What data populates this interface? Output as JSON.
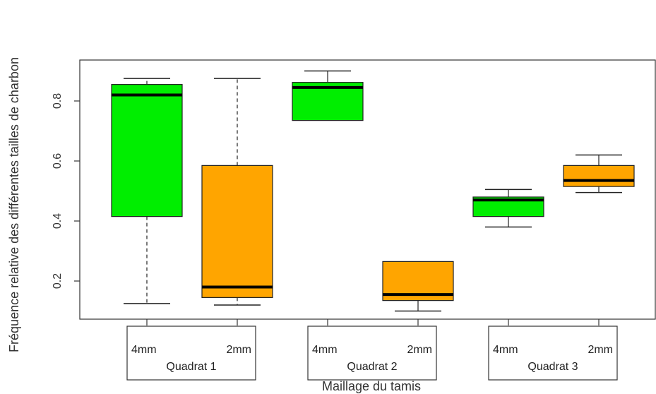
{
  "chart_data": {
    "type": "boxplot",
    "title": "",
    "xlabel": "Maillage du tamis",
    "ylabel": "Fréquence relative des différentes tailles de charbon",
    "ylim": [
      0.05,
      0.92
    ],
    "yticks": [
      0.2,
      0.4,
      0.6,
      0.8
    ],
    "ytick_labels": [
      "0.2",
      "0.4",
      "0.6",
      "0.8"
    ],
    "grid": false,
    "groups": [
      {
        "label": "Quadrat 1",
        "sublabels": [
          "4mm",
          "2mm"
        ]
      },
      {
        "label": "Quadrat 2",
        "sublabels": [
          "4mm",
          "2mm"
        ]
      },
      {
        "label": "Quadrat 3",
        "sublabels": [
          "4mm",
          "2mm"
        ]
      }
    ],
    "boxes": [
      {
        "group": "Quadrat 1",
        "mesh": "4mm",
        "color": "#00ee00",
        "whisker_low": 0.125,
        "q1": 0.415,
        "median": 0.82,
        "q3": 0.855,
        "whisker_high": 0.875,
        "dashed_whiskers": true
      },
      {
        "group": "Quadrat 1",
        "mesh": "2mm",
        "color": "#ffa500",
        "whisker_low": 0.12,
        "q1": 0.145,
        "median": 0.18,
        "q3": 0.585,
        "whisker_high": 0.875,
        "dashed_whiskers": true
      },
      {
        "group": "Quadrat 2",
        "mesh": "4mm",
        "color": "#00ee00",
        "whisker_low": 0.735,
        "q1": 0.735,
        "median": 0.845,
        "q3": 0.862,
        "whisker_high": 0.9,
        "dashed_whiskers": false
      },
      {
        "group": "Quadrat 2",
        "mesh": "2mm",
        "color": "#ffa500",
        "whisker_low": 0.1,
        "q1": 0.135,
        "median": 0.155,
        "q3": 0.265,
        "whisker_high": 0.265,
        "dashed_whiskers": false
      },
      {
        "group": "Quadrat 3",
        "mesh": "4mm",
        "color": "#00ee00",
        "whisker_low": 0.38,
        "q1": 0.415,
        "median": 0.47,
        "q3": 0.48,
        "whisker_high": 0.505,
        "dashed_whiskers": false
      },
      {
        "group": "Quadrat 3",
        "mesh": "2mm",
        "color": "#ffa500",
        "whisker_low": 0.495,
        "q1": 0.515,
        "median": 0.535,
        "q3": 0.585,
        "whisker_high": 0.62,
        "dashed_whiskers": false
      }
    ]
  }
}
